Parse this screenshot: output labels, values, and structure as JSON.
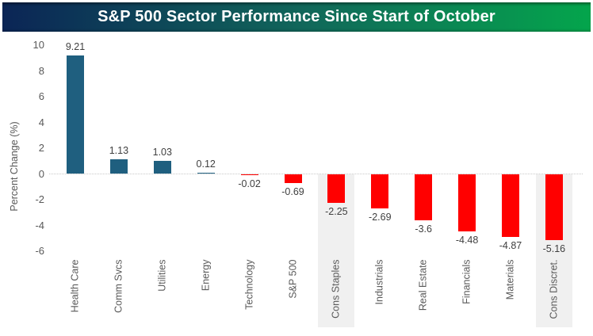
{
  "banner": {
    "title": "S&P 500 Sector Performance Since Start of October",
    "gradient_left": "#0B2556",
    "gradient_mid": "#11685A",
    "gradient_right": "#04A54C",
    "text_color": "#FFFFFF"
  },
  "chart_data": {
    "type": "bar",
    "title": "S&P 500 Sector Performance Since Start of October",
    "xlabel": "",
    "ylabel": "Percent Change (%)",
    "categories": [
      "Health Care",
      "Comm Svcs",
      "Utilities",
      "Energy",
      "Technology",
      "S&P 500",
      "Cons Staples",
      "Industrials",
      "Real Estate",
      "Financials",
      "Materials",
      "Cons Discret."
    ],
    "values": [
      9.21,
      1.13,
      1.03,
      0.12,
      -0.02,
      -0.69,
      -2.25,
      -2.69,
      -3.6,
      -4.48,
      -4.87,
      -5.16
    ],
    "value_labels": [
      "9.21",
      "1.13",
      "1.03",
      "0.12",
      "-0.02",
      "-0.69",
      "-2.25",
      "-2.69",
      "-3.6",
      "-4.48",
      "-4.87",
      "-5.16"
    ],
    "yticks": [
      10,
      8,
      6,
      4,
      2,
      0,
      -2,
      -4,
      -6
    ],
    "ylim": [
      -6.5,
      10.5
    ],
    "grid": false,
    "legend": false,
    "zero_line_style": "dotted",
    "positive_color": "#1F5F7F",
    "negative_color": "#FF0000",
    "highlight_indices": [
      6,
      11
    ],
    "highlight_band_color": "#F0F0F0",
    "axis_text_color": "#595959",
    "value_label_color": "#3F3F3F"
  }
}
